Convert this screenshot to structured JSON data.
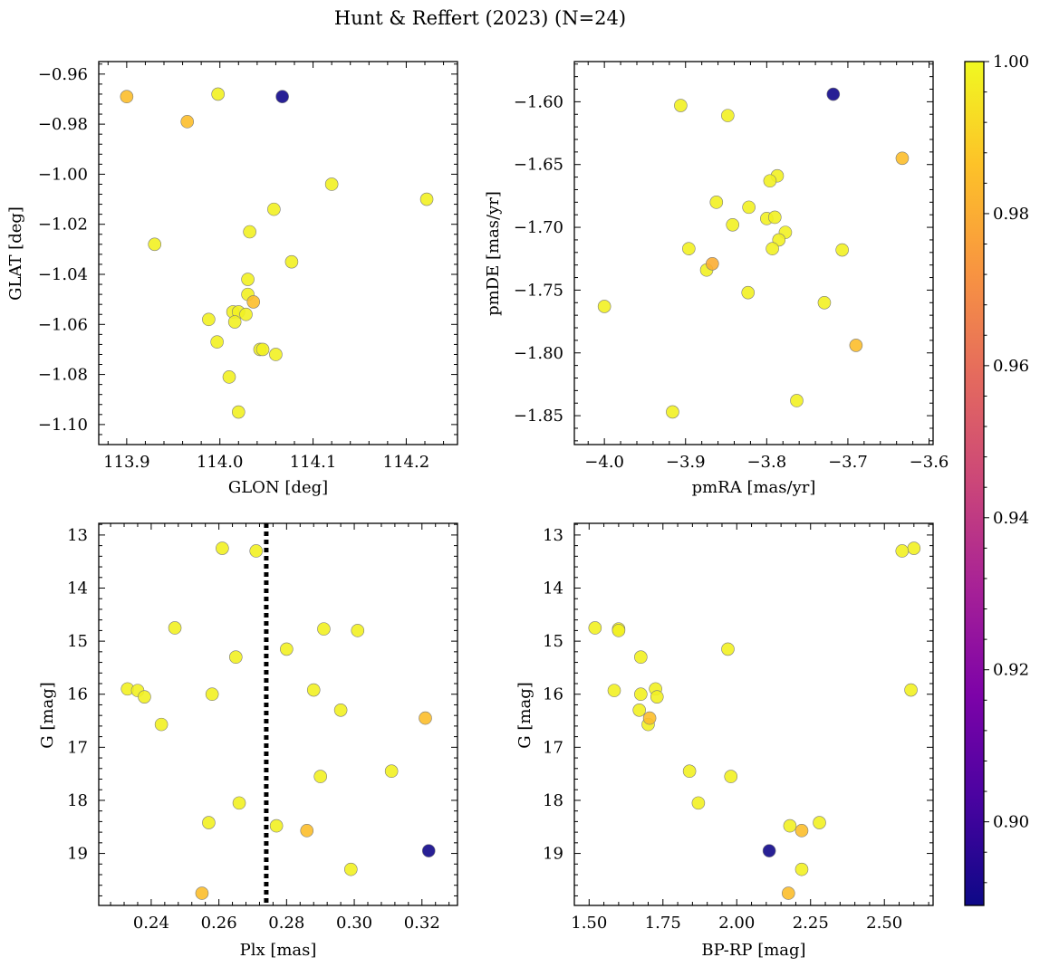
{
  "title": "Hunt & Reffert (2023) (N=24)",
  "chart_data": [
    {
      "type": "scatter",
      "xlabel": "GLON [deg]",
      "ylabel": "GLAT [deg]",
      "xlim": [
        113.87,
        114.255
      ],
      "ylim": [
        -1.108,
        -0.955
      ],
      "y_inverted": false,
      "xticks": [
        113.9,
        114.0,
        114.1,
        114.2
      ],
      "xtick_labels": [
        "113.9",
        "114.0",
        "114.1",
        "114.2"
      ],
      "yticks": [
        -0.96,
        -0.98,
        -1.0,
        -1.02,
        -1.04,
        -1.06,
        -1.08,
        -1.1
      ],
      "ytick_labels": [
        "−0.96",
        "−0.98",
        "−1.00",
        "−1.02",
        "−1.04",
        "−1.06",
        "−1.08",
        "−1.10"
      ],
      "points": [
        {
          "x": 113.9,
          "y": -0.969,
          "c": 0.985
        },
        {
          "x": 113.965,
          "y": -0.979,
          "c": 0.985
        },
        {
          "x": 113.998,
          "y": -0.968,
          "c": 0.998
        },
        {
          "x": 114.067,
          "y": -0.969,
          "c": 0.89
        },
        {
          "x": 114.12,
          "y": -1.004,
          "c": 0.998
        },
        {
          "x": 114.222,
          "y": -1.01,
          "c": 0.998
        },
        {
          "x": 113.93,
          "y": -1.028,
          "c": 0.998
        },
        {
          "x": 114.058,
          "y": -1.014,
          "c": 0.998
        },
        {
          "x": 114.032,
          "y": -1.023,
          "c": 0.998
        },
        {
          "x": 114.077,
          "y": -1.035,
          "c": 0.998
        },
        {
          "x": 114.03,
          "y": -1.042,
          "c": 0.998
        },
        {
          "x": 114.03,
          "y": -1.048,
          "c": 0.998
        },
        {
          "x": 114.036,
          "y": -1.051,
          "c": 0.985
        },
        {
          "x": 114.014,
          "y": -1.055,
          "c": 0.998
        },
        {
          "x": 114.02,
          "y": -1.055,
          "c": 0.998
        },
        {
          "x": 114.028,
          "y": -1.056,
          "c": 0.998
        },
        {
          "x": 114.016,
          "y": -1.059,
          "c": 0.998
        },
        {
          "x": 113.988,
          "y": -1.058,
          "c": 0.998
        },
        {
          "x": 113.997,
          "y": -1.067,
          "c": 0.998
        },
        {
          "x": 114.043,
          "y": -1.07,
          "c": 0.998
        },
        {
          "x": 114.046,
          "y": -1.07,
          "c": 0.998
        },
        {
          "x": 114.06,
          "y": -1.072,
          "c": 0.998
        },
        {
          "x": 114.01,
          "y": -1.081,
          "c": 0.998
        },
        {
          "x": 114.02,
          "y": -1.095,
          "c": 0.998
        }
      ]
    },
    {
      "type": "scatter",
      "xlabel": "pmRA [mas/yr]",
      "ylabel": "pmDE [mas/yr]",
      "xlim": [
        -4.037,
        -3.595
      ],
      "ylim": [
        -1.873,
        -1.568
      ],
      "y_inverted": false,
      "xticks": [
        -4.0,
        -3.9,
        -3.8,
        -3.7,
        -3.6
      ],
      "xtick_labels": [
        "−4.0",
        "−3.9",
        "−3.8",
        "−3.7",
        "−3.6"
      ],
      "yticks": [
        -1.6,
        -1.65,
        -1.7,
        -1.75,
        -1.8,
        -1.85
      ],
      "ytick_labels": [
        "−1.60",
        "−1.65",
        "−1.70",
        "−1.75",
        "−1.80",
        "−1.85"
      ],
      "points": [
        {
          "x": -3.906,
          "y": -1.603,
          "c": 0.998
        },
        {
          "x": -3.848,
          "y": -1.611,
          "c": 0.998
        },
        {
          "x": -3.718,
          "y": -1.594,
          "c": 0.89
        },
        {
          "x": -3.633,
          "y": -1.645,
          "c": 0.985
        },
        {
          "x": -3.787,
          "y": -1.659,
          "c": 0.998
        },
        {
          "x": -3.796,
          "y": -1.663,
          "c": 0.998
        },
        {
          "x": -3.862,
          "y": -1.68,
          "c": 0.998
        },
        {
          "x": -3.822,
          "y": -1.684,
          "c": 0.998
        },
        {
          "x": -3.8,
          "y": -1.693,
          "c": 0.998
        },
        {
          "x": -3.79,
          "y": -1.692,
          "c": 0.998
        },
        {
          "x": -3.842,
          "y": -1.698,
          "c": 0.998
        },
        {
          "x": -3.777,
          "y": -1.704,
          "c": 0.998
        },
        {
          "x": -3.785,
          "y": -1.71,
          "c": 0.998
        },
        {
          "x": -3.896,
          "y": -1.717,
          "c": 0.998
        },
        {
          "x": -3.793,
          "y": -1.717,
          "c": 0.998
        },
        {
          "x": -3.707,
          "y": -1.718,
          "c": 0.998
        },
        {
          "x": -3.867,
          "y": -1.729,
          "c": 0.98
        },
        {
          "x": -3.874,
          "y": -1.734,
          "c": 0.998
        },
        {
          "x": -3.823,
          "y": -1.752,
          "c": 0.998
        },
        {
          "x": -3.729,
          "y": -1.76,
          "c": 0.998
        },
        {
          "x": -4.0,
          "y": -1.763,
          "c": 0.998
        },
        {
          "x": -3.69,
          "y": -1.794,
          "c": 0.985
        },
        {
          "x": -3.763,
          "y": -1.838,
          "c": 0.998
        },
        {
          "x": -3.916,
          "y": -1.847,
          "c": 0.998
        }
      ]
    },
    {
      "type": "scatter",
      "xlabel": "Plx [mas]",
      "ylabel": "G [mag]",
      "xlim": [
        0.2245,
        0.3305
      ],
      "ylim": [
        12.78,
        19.98
      ],
      "y_inverted": true,
      "vline": {
        "x": 0.274,
        "style": "dotted"
      },
      "xticks": [
        0.24,
        0.26,
        0.28,
        0.3,
        0.32
      ],
      "xtick_labels": [
        "0.24",
        "0.26",
        "0.28",
        "0.30",
        "0.32"
      ],
      "yticks": [
        13,
        14,
        15,
        16,
        17,
        18,
        19
      ],
      "ytick_labels": [
        "13",
        "14",
        "15",
        "16",
        "17",
        "18",
        "19"
      ],
      "points": [
        {
          "x": 0.261,
          "y": 13.25,
          "c": 0.998
        },
        {
          "x": 0.271,
          "y": 13.3,
          "c": 0.998
        },
        {
          "x": 0.247,
          "y": 14.75,
          "c": 0.998
        },
        {
          "x": 0.291,
          "y": 14.77,
          "c": 0.998
        },
        {
          "x": 0.301,
          "y": 14.8,
          "c": 0.998
        },
        {
          "x": 0.28,
          "y": 15.15,
          "c": 0.998
        },
        {
          "x": 0.265,
          "y": 15.3,
          "c": 0.998
        },
        {
          "x": 0.233,
          "y": 15.9,
          "c": 0.998
        },
        {
          "x": 0.236,
          "y": 15.93,
          "c": 0.998
        },
        {
          "x": 0.288,
          "y": 15.92,
          "c": 0.998
        },
        {
          "x": 0.238,
          "y": 16.05,
          "c": 0.998
        },
        {
          "x": 0.258,
          "y": 16.0,
          "c": 0.998
        },
        {
          "x": 0.296,
          "y": 16.3,
          "c": 0.998
        },
        {
          "x": 0.321,
          "y": 16.45,
          "c": 0.985
        },
        {
          "x": 0.243,
          "y": 16.57,
          "c": 0.998
        },
        {
          "x": 0.311,
          "y": 17.45,
          "c": 0.998
        },
        {
          "x": 0.29,
          "y": 17.55,
          "c": 0.998
        },
        {
          "x": 0.266,
          "y": 18.05,
          "c": 0.998
        },
        {
          "x": 0.257,
          "y": 18.42,
          "c": 0.998
        },
        {
          "x": 0.277,
          "y": 18.48,
          "c": 0.998
        },
        {
          "x": 0.286,
          "y": 18.57,
          "c": 0.985
        },
        {
          "x": 0.322,
          "y": 18.95,
          "c": 0.89
        },
        {
          "x": 0.299,
          "y": 19.3,
          "c": 0.998
        },
        {
          "x": 0.255,
          "y": 19.75,
          "c": 0.985
        }
      ]
    },
    {
      "type": "scatter",
      "xlabel": "BP-RP [mag]",
      "ylabel": "G [mag]",
      "xlim": [
        1.45,
        2.665
      ],
      "ylim": [
        12.78,
        19.98
      ],
      "y_inverted": true,
      "xticks": [
        1.5,
        1.75,
        2.0,
        2.25,
        2.5
      ],
      "xtick_labels": [
        "1.50",
        "1.75",
        "2.00",
        "2.25",
        "2.50"
      ],
      "yticks": [
        13,
        14,
        15,
        16,
        17,
        18,
        19
      ],
      "ytick_labels": [
        "13",
        "14",
        "15",
        "16",
        "17",
        "18",
        "19"
      ],
      "points": [
        {
          "x": 2.6,
          "y": 13.25,
          "c": 0.998
        },
        {
          "x": 2.56,
          "y": 13.3,
          "c": 0.998
        },
        {
          "x": 1.52,
          "y": 14.75,
          "c": 0.998
        },
        {
          "x": 1.6,
          "y": 14.77,
          "c": 0.998
        },
        {
          "x": 1.6,
          "y": 14.8,
          "c": 0.998
        },
        {
          "x": 1.97,
          "y": 15.15,
          "c": 0.998
        },
        {
          "x": 1.675,
          "y": 15.3,
          "c": 0.998
        },
        {
          "x": 1.725,
          "y": 15.9,
          "c": 0.998
        },
        {
          "x": 1.585,
          "y": 15.93,
          "c": 0.998
        },
        {
          "x": 2.59,
          "y": 15.92,
          "c": 0.998
        },
        {
          "x": 1.73,
          "y": 16.05,
          "c": 0.998
        },
        {
          "x": 1.675,
          "y": 16.0,
          "c": 0.998
        },
        {
          "x": 1.67,
          "y": 16.3,
          "c": 0.998
        },
        {
          "x": 1.705,
          "y": 16.45,
          "c": 0.985
        },
        {
          "x": 1.7,
          "y": 16.57,
          "c": 0.998
        },
        {
          "x": 1.84,
          "y": 17.45,
          "c": 0.998
        },
        {
          "x": 1.98,
          "y": 17.55,
          "c": 0.998
        },
        {
          "x": 1.87,
          "y": 18.05,
          "c": 0.998
        },
        {
          "x": 2.28,
          "y": 18.42,
          "c": 0.998
        },
        {
          "x": 2.18,
          "y": 18.48,
          "c": 0.998
        },
        {
          "x": 2.22,
          "y": 18.57,
          "c": 0.985
        },
        {
          "x": 2.11,
          "y": 18.95,
          "c": 0.89
        },
        {
          "x": 2.22,
          "y": 19.3,
          "c": 0.998
        },
        {
          "x": 2.175,
          "y": 19.75,
          "c": 0.985
        }
      ]
    }
  ],
  "colorbar": {
    "colormap": "plasma",
    "range": [
      0.889,
      1.0
    ],
    "ticks": [
      0.9,
      0.92,
      0.94,
      0.96,
      0.98,
      1.0
    ],
    "tick_labels": [
      "0.90",
      "0.92",
      "0.94",
      "0.96",
      "0.98",
      "1.00"
    ]
  }
}
